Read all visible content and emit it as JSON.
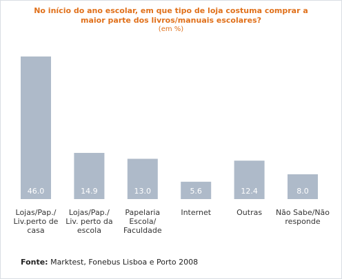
{
  "title_line1": "No início do ano escolar, em que tipo de loja costuma comprar a",
  "title_line2": "maior parte dos livros/manuais escolares?",
  "subtitle": "(em %)",
  "source_label": "Fonte:",
  "source_text": "Marktest, Fonebus Lisboa e Porto 2008",
  "colors": {
    "bar": "#aebac9",
    "label": "#ffffff",
    "title": "#e0701a"
  },
  "chart_data": {
    "type": "bar",
    "categories": [
      [
        "Lojas/Pap./",
        "Liv.perto de",
        "casa"
      ],
      [
        "Lojas/Pap./",
        "Liv. perto da",
        "escola"
      ],
      [
        "Papelaria",
        "Escola/",
        "Faculdade"
      ],
      [
        "Internet"
      ],
      [
        "Outras"
      ],
      [
        "Não Sabe/Não",
        "responde"
      ]
    ],
    "values": [
      46.0,
      14.9,
      13.0,
      5.6,
      12.4,
      8.0
    ],
    "data_labels": [
      "46.0",
      "14.9",
      "13.0",
      "5.6",
      "12.4",
      "8.0"
    ],
    "ylim": [
      0,
      46.0
    ],
    "unit": "%"
  }
}
